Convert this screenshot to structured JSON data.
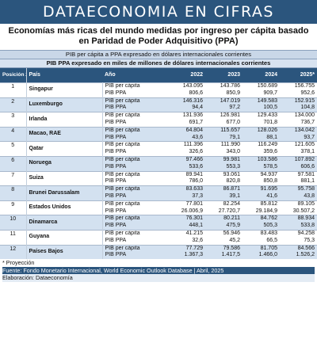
{
  "banner": "DATAECONOMIA EN CIFRAS",
  "title": "Economías más ricas del mundo medidas por ingreso per cápita basado en Paridad de Poder Adquisitivo (PPA)",
  "subheader1": "PIB per cápita a PPA expresado en dólares internacionales corrientes",
  "subheader2": "PIB PPA expresado en miles de millones de dólares internacionales corrientes",
  "columns": {
    "position": "Posición 2024",
    "country": "País",
    "year": "Año",
    "y2022": "2022",
    "y2023": "2023",
    "y2024": "2024",
    "y2025": "2025*"
  },
  "rows": [
    {
      "pos": "1",
      "country": "Singapur",
      "pc": {
        "label": "PIB per cápita",
        "v": [
          "143.095",
          "143.786",
          "150.689",
          "156.755"
        ]
      },
      "ppa": {
        "label": "PIB PPA",
        "v": [
          "806,6",
          "850,9",
          "909,7",
          "952,6"
        ]
      }
    },
    {
      "pos": "2",
      "country": "Luxemburgo",
      "pc": {
        "label": "PIB per cápita",
        "v": [
          "146.316",
          "147.019",
          "149.583",
          "152.915"
        ]
      },
      "ppa": {
        "label": "PIB PPA",
        "v": [
          "94,4",
          "97,2",
          "100,5",
          "104,8"
        ]
      }
    },
    {
      "pos": "3",
      "country": "Irlanda",
      "pc": {
        "label": "PIB per cápita",
        "v": [
          "131.936",
          "126.981",
          "129.433",
          "134.000"
        ]
      },
      "ppa": {
        "label": "PIB PPA",
        "v": [
          "691,7",
          "677,0",
          "701,8",
          "736,7"
        ]
      }
    },
    {
      "pos": "4",
      "country": "Macao, RAE",
      "pc": {
        "label": "PIB per cápita",
        "v": [
          "64.804",
          "115.657",
          "128.026",
          "134.042"
        ]
      },
      "ppa": {
        "label": "PIB PPA",
        "v": [
          "43,6",
          "79,1",
          "88,1",
          "93,7"
        ]
      }
    },
    {
      "pos": "5",
      "country": "Qatar",
      "pc": {
        "label": "PIB per cápita",
        "v": [
          "111.396",
          "111.990",
          "116.249",
          "121.605"
        ]
      },
      "ppa": {
        "label": "PIB PPA",
        "v": [
          "326,6",
          "343,0",
          "359,6",
          "378,1"
        ]
      }
    },
    {
      "pos": "6",
      "country": "Noruega",
      "pc": {
        "label": "PIB per cápita",
        "v": [
          "97.466",
          "99.981",
          "103.586",
          "107.892"
        ]
      },
      "ppa": {
        "label": "PIB PPA",
        "v": [
          "533,6",
          "553,3",
          "578,5",
          "606,6"
        ]
      }
    },
    {
      "pos": "7",
      "country": "Suiza",
      "pc": {
        "label": "PIB per cápita",
        "v": [
          "89.941",
          "93.061",
          "94.937",
          "97.581"
        ]
      },
      "ppa": {
        "label": "PIB PPA",
        "v": [
          "786,0",
          "820,8",
          "850,8",
          "881,1"
        ]
      }
    },
    {
      "pos": "8",
      "country": "Brunei Darussalam",
      "pc": {
        "label": "PIB per cápita",
        "v": [
          "83.633",
          "86.871",
          "91.695",
          "95.758"
        ]
      },
      "ppa": {
        "label": "PIB PPA",
        "v": [
          "37,3",
          "39,1",
          "41,6",
          "43,8"
        ]
      }
    },
    {
      "pos": "9",
      "country": "Estados Unidos",
      "pc": {
        "label": "PIB per cápita",
        "v": [
          "77.801",
          "82.254",
          "85.812",
          "89.105"
        ]
      },
      "ppa": {
        "label": "PIB PPA",
        "v": [
          "26.006,9",
          "27.720,7",
          "29.184,9",
          "30.507,2"
        ]
      }
    },
    {
      "pos": "10",
      "country": "Dinamarca",
      "pc": {
        "label": "PIB per cápita",
        "v": [
          "76.301",
          "80.211",
          "84.762",
          "88.934"
        ]
      },
      "ppa": {
        "label": "PIB PPA",
        "v": [
          "448,1",
          "475,9",
          "505,3",
          "533,8"
        ]
      }
    },
    {
      "pos": "11",
      "country": "Guyana",
      "pc": {
        "label": "PIB per cápita",
        "v": [
          "41.215",
          "56.946",
          "83.483",
          "94.258"
        ]
      },
      "ppa": {
        "label": "PIB PPA",
        "v": [
          "32,6",
          "45,2",
          "66,5",
          "75,3"
        ]
      }
    },
    {
      "pos": "12",
      "country": "Países Bajos",
      "pc": {
        "label": "PIB per cápita",
        "v": [
          "77.729",
          "79.586",
          "81.705",
          "84.566"
        ]
      },
      "ppa": {
        "label": "PIB PPA",
        "v": [
          "1.367,3",
          "1.417,5",
          "1.466,0",
          "1.526,2"
        ]
      }
    }
  ],
  "footnote": "* Proyección",
  "source": "Fuente: Fondo Monetario Internacional, World Economic Outlook Database | Abril, 2025",
  "elaboration": "Elaboración: Dataeconomía"
}
